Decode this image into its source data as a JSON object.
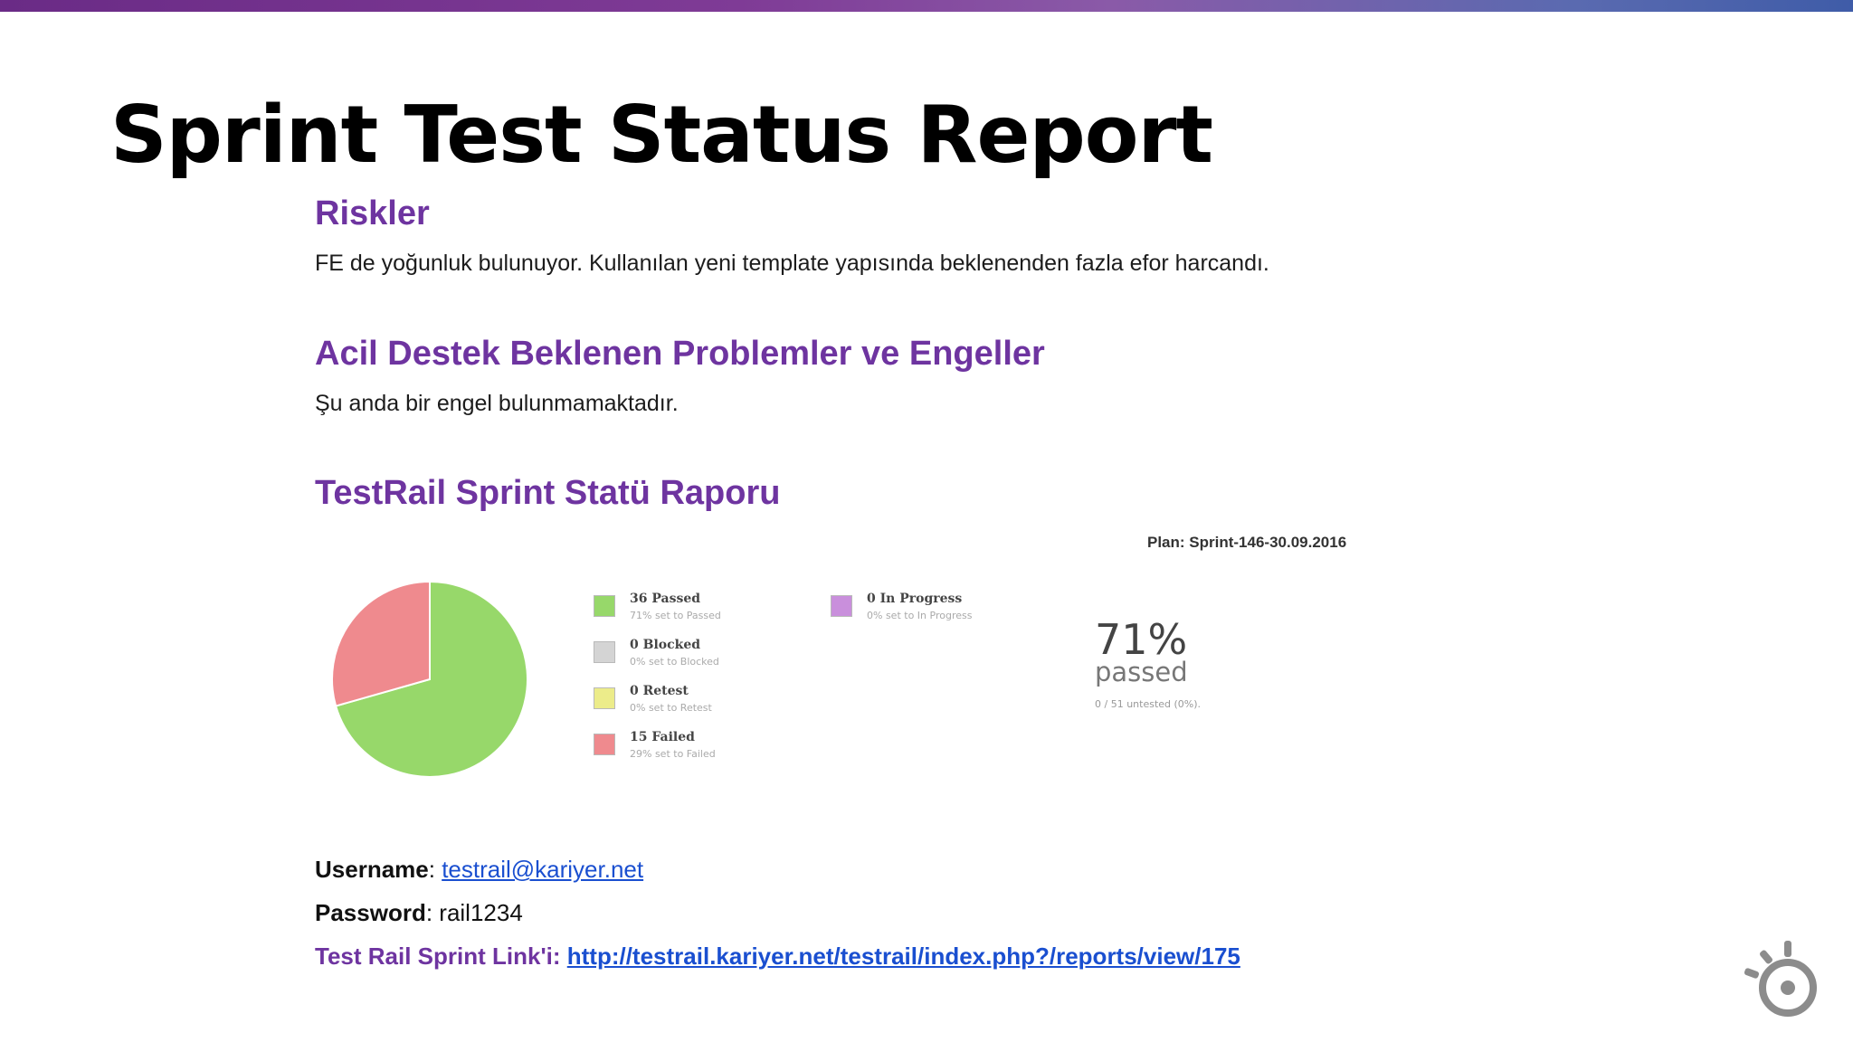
{
  "slide": {
    "title": "Sprint Test Status Report"
  },
  "risks": {
    "heading": "Riskler",
    "text": "FE de yoğunluk bulunuyor. Kullanılan yeni template yapısında beklenenden fazla efor harcandı."
  },
  "blockers": {
    "heading": "Acil Destek Beklenen Problemler ve Engeller",
    "text": "Şu anda bir engel bulunmamaktadır."
  },
  "testrail": {
    "heading": "TestRail Sprint Statü Raporu",
    "plan": "Plan: Sprint-146-30.09.2016",
    "legend": [
      {
        "title": "36 Passed",
        "sub": "71% set to Passed",
        "color": "#97d86a"
      },
      {
        "title": "0 Blocked",
        "sub": "0% set to Blocked",
        "color": "#d4d4d4"
      },
      {
        "title": "0 Retest",
        "sub": "0% set to Retest",
        "color": "#ecec8a"
      },
      {
        "title": "15 Failed",
        "sub": "29% set to Failed",
        "color": "#ef8a8e"
      },
      {
        "title": "0 In Progress",
        "sub": "0% set to In Progress",
        "color": "#c98fdc"
      }
    ],
    "percent": "71%",
    "percent_label": "passed",
    "untested": "0 / 51 untested (0%)."
  },
  "chart_data": {
    "type": "pie",
    "categories": [
      "Passed",
      "Blocked",
      "Retest",
      "Failed",
      "In Progress"
    ],
    "values": [
      36,
      0,
      0,
      15,
      0
    ],
    "colors": [
      "#97d86a",
      "#d4d4d4",
      "#ecec8a",
      "#ef8a8e",
      "#c98fdc"
    ],
    "title": ""
  },
  "credentials": {
    "username_label": "Username",
    "username_value": "testrail@kariyer.net",
    "password_label": "Password",
    "password_value": "rail1234",
    "link_label": "Test Rail Sprint Link'i:",
    "link_url": "http://testrail.kariyer.net/testrail/index.php?/reports/view/175"
  },
  "icons": {
    "logo": "kariyer-logo-icon"
  }
}
